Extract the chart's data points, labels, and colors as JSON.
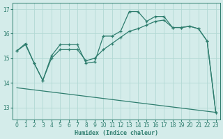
{
  "xlabel": "Humidex (Indice chaleur)",
  "line_color": "#2e7d6e",
  "bg_color": "#d4ecea",
  "grid_color": "#b2d8d4",
  "ylim": [
    12.5,
    17.25
  ],
  "xlim": [
    -0.5,
    23.5
  ],
  "yticks": [
    13,
    14,
    15,
    16,
    17
  ],
  "xticks": [
    0,
    1,
    2,
    3,
    4,
    5,
    6,
    7,
    8,
    9,
    10,
    11,
    12,
    13,
    14,
    15,
    16,
    17,
    18,
    19,
    20,
    21,
    22,
    23
  ],
  "line1_x": [
    0,
    1,
    2,
    3,
    4,
    5,
    6,
    7,
    8,
    9,
    10,
    11,
    12,
    13,
    14,
    15,
    16,
    17,
    18,
    19,
    20,
    21,
    22,
    23
  ],
  "line1_y": [
    15.3,
    15.6,
    14.8,
    14.1,
    15.1,
    15.55,
    15.55,
    15.55,
    14.8,
    14.85,
    15.9,
    15.9,
    16.1,
    16.9,
    16.9,
    16.5,
    16.7,
    16.7,
    16.25,
    16.25,
    16.3,
    16.2,
    15.7,
    12.8
  ],
  "line2_x": [
    0,
    1,
    2,
    3,
    4,
    5,
    6,
    7,
    8,
    9,
    10,
    11,
    12,
    13,
    14,
    15,
    16,
    17,
    18,
    19,
    20,
    21,
    22,
    23
  ],
  "line2_y": [
    15.3,
    15.55,
    14.8,
    14.1,
    15.0,
    15.35,
    15.35,
    15.35,
    14.9,
    15.0,
    15.35,
    15.6,
    15.85,
    16.1,
    16.2,
    16.35,
    16.5,
    16.55,
    16.25,
    16.25,
    16.3,
    16.2,
    15.7,
    12.8
  ],
  "line3_x": [
    0,
    23
  ],
  "line3_y": [
    13.8,
    12.8
  ]
}
